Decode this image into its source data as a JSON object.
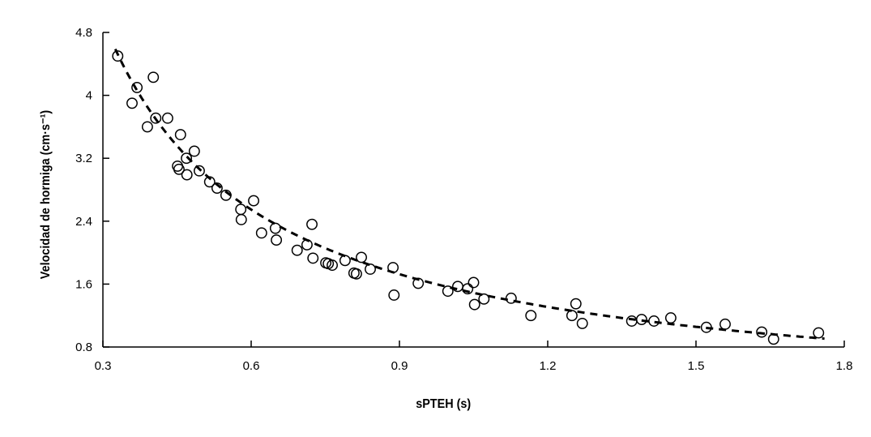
{
  "chart_data": {
    "type": "scatter",
    "title": "",
    "xlabel": "sPTEH (s)",
    "ylabel": "Velocidad de hormiga (cm·s⁻¹)",
    "xlim": [
      0.3,
      1.8
    ],
    "ylim": [
      0.8,
      4.8
    ],
    "xticks": [
      "0.3",
      "0.6",
      "0.9",
      "1.2",
      "1.5",
      "1.8"
    ],
    "yticks": [
      "0.8",
      "1.6",
      "2.4",
      "3.2",
      "4",
      "4.8"
    ],
    "grid": false,
    "legend": "none",
    "marker": "open-circle",
    "trendline": {
      "type": "power",
      "style": "dashed",
      "coefficient": 1.56,
      "exponent": -0.96
    },
    "points": [
      [
        0.33,
        4.5
      ],
      [
        0.369,
        4.1
      ],
      [
        0.402,
        4.23
      ],
      [
        0.359,
        3.9
      ],
      [
        0.407,
        3.71
      ],
      [
        0.431,
        3.71
      ],
      [
        0.39,
        3.6
      ],
      [
        0.457,
        3.5
      ],
      [
        0.485,
        3.29
      ],
      [
        0.469,
        3.2
      ],
      [
        0.451,
        3.1
      ],
      [
        0.454,
        3.06
      ],
      [
        0.47,
        2.99
      ],
      [
        0.495,
        3.04
      ],
      [
        0.516,
        2.9
      ],
      [
        0.531,
        2.82
      ],
      [
        0.549,
        2.73
      ],
      [
        0.605,
        2.66
      ],
      [
        0.579,
        2.55
      ],
      [
        0.58,
        2.42
      ],
      [
        0.649,
        2.31
      ],
      [
        0.621,
        2.25
      ],
      [
        0.651,
        2.16
      ],
      [
        0.723,
        2.36
      ],
      [
        0.713,
        2.1
      ],
      [
        0.693,
        2.03
      ],
      [
        0.725,
        1.93
      ],
      [
        0.751,
        1.87
      ],
      [
        0.756,
        1.86
      ],
      [
        0.764,
        1.84
      ],
      [
        0.79,
        1.9
      ],
      [
        0.823,
        1.94
      ],
      [
        0.841,
        1.79
      ],
      [
        0.808,
        1.74
      ],
      [
        0.813,
        1.73
      ],
      [
        0.887,
        1.81
      ],
      [
        0.889,
        1.46
      ],
      [
        0.938,
        1.61
      ],
      [
        0.998,
        1.51
      ],
      [
        1.018,
        1.57
      ],
      [
        1.038,
        1.54
      ],
      [
        1.05,
        1.62
      ],
      [
        1.052,
        1.34
      ],
      [
        1.071,
        1.41
      ],
      [
        1.126,
        1.42
      ],
      [
        1.166,
        1.2
      ],
      [
        1.249,
        1.2
      ],
      [
        1.257,
        1.35
      ],
      [
        1.27,
        1.1
      ],
      [
        1.37,
        1.13
      ],
      [
        1.39,
        1.15
      ],
      [
        1.415,
        1.13
      ],
      [
        1.449,
        1.17
      ],
      [
        1.521,
        1.05
      ],
      [
        1.559,
        1.09
      ],
      [
        1.633,
        0.99
      ],
      [
        1.657,
        0.9
      ],
      [
        1.748,
        0.98
      ]
    ]
  }
}
